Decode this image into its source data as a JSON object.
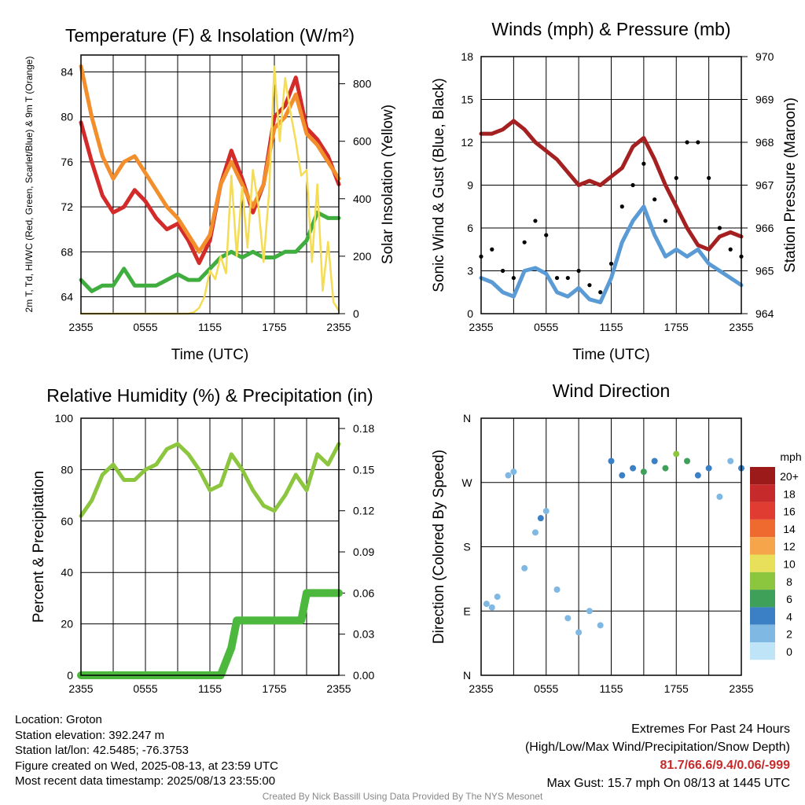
{
  "chart_data": [
    {
      "type": "line",
      "title": "Temperature (F) & Insolation (W/m²)",
      "xlabel": "Time (UTC)",
      "ylabel_left": "2m T, Td, HI/WC (Red, Green, Scarlet/Blue) & 9m T (Orange)",
      "ylabel_right": "Solar Insolation (Yellow)",
      "x_ticks": [
        "2355",
        "0555",
        "1155",
        "1755",
        "2355"
      ],
      "ylim": [
        62.5,
        85.5
      ],
      "yticks": [
        64,
        68,
        72,
        76,
        80,
        84
      ],
      "y2lim": [
        0,
        900
      ],
      "y2ticks": [
        0,
        200,
        400,
        600,
        800
      ],
      "grid": true,
      "series": [
        {
          "color": "#d32a2a",
          "x": [
            0,
            1,
            2,
            3,
            4,
            5,
            6,
            7,
            8,
            9,
            10,
            11,
            12,
            13,
            14,
            15,
            16,
            17,
            18,
            19,
            20,
            21,
            22,
            23,
            24
          ],
          "values": [
            79.5,
            76,
            73,
            71.5,
            72,
            73.5,
            72.5,
            71,
            70,
            70.5,
            69,
            67,
            69,
            74,
            77,
            74.5,
            71.5,
            74,
            80,
            81,
            83.5,
            79,
            78,
            76.5,
            74
          ]
        },
        {
          "color": "#f28e2b",
          "x": [
            0,
            1,
            2,
            3,
            4,
            5,
            6,
            7,
            8,
            9,
            10,
            11,
            12,
            13,
            14,
            15,
            16,
            17,
            18,
            19,
            20,
            21,
            22,
            23,
            24
          ],
          "values": [
            84.5,
            80,
            76.5,
            74.5,
            76,
            76.5,
            75,
            73.5,
            72,
            71,
            69.5,
            68,
            69.5,
            74,
            76,
            74,
            72,
            74,
            79,
            80,
            82,
            78.5,
            77.5,
            76,
            74.5
          ]
        },
        {
          "color": "#3fae3f",
          "x": [
            0,
            1,
            2,
            3,
            4,
            5,
            6,
            7,
            8,
            9,
            10,
            11,
            12,
            13,
            14,
            15,
            16,
            17,
            18,
            19,
            20,
            21,
            22,
            23,
            24
          ],
          "values": [
            65.5,
            64.5,
            65,
            65,
            66.5,
            65,
            65,
            65,
            65.5,
            66,
            65.5,
            65.5,
            66.5,
            67.5,
            68,
            67.5,
            68,
            67.5,
            67.5,
            68,
            68,
            69,
            71.5,
            71,
            71
          ]
        },
        {
          "color": "#f5dc55",
          "axis": "right",
          "x": [
            0,
            2,
            4,
            6,
            8,
            10,
            10.5,
            11,
            11.5,
            12,
            12.5,
            13,
            13.5,
            14,
            14.5,
            15,
            15.5,
            16,
            16.5,
            17,
            17.5,
            18,
            18.5,
            19,
            19.5,
            20,
            20.5,
            21,
            21.5,
            22,
            22.5,
            23,
            23.5,
            24
          ],
          "values": [
            0,
            0,
            0,
            0,
            0,
            0,
            5,
            20,
            60,
            150,
            120,
            200,
            140,
            480,
            200,
            440,
            230,
            500,
            380,
            180,
            420,
            860,
            600,
            820,
            700,
            600,
            480,
            500,
            180,
            450,
            80,
            250,
            40,
            10
          ]
        }
      ]
    },
    {
      "type": "line",
      "title": "Winds (mph) & Pressure (mb)",
      "xlabel": "Time (UTC)",
      "ylabel_left": "Sonic Wind & Gust (Blue, Black)",
      "ylabel_right": "Station Pressure (Maroon)",
      "x_ticks": [
        "2355",
        "0555",
        "1155",
        "1755",
        "2355"
      ],
      "ylim": [
        0,
        18
      ],
      "yticks": [
        0,
        3,
        6,
        9,
        12,
        15,
        18
      ],
      "y2lim": [
        964,
        970
      ],
      "y2ticks": [
        964,
        965,
        966,
        967,
        968,
        969,
        970
      ],
      "grid": true,
      "series": [
        {
          "color": "#5a9bd5",
          "x": [
            0,
            1,
            2,
            3,
            4,
            5,
            6,
            7,
            8,
            9,
            10,
            11,
            12,
            13,
            14,
            15,
            16,
            17,
            18,
            19,
            20,
            21,
            22,
            23,
            24
          ],
          "values": [
            2.5,
            2.2,
            1.5,
            1.2,
            3.0,
            3.2,
            2.8,
            1.5,
            1.2,
            1.8,
            1.0,
            0.8,
            2.5,
            5.0,
            6.5,
            7.5,
            5.5,
            4.0,
            4.5,
            4.0,
            4.5,
            3.5,
            3.0,
            2.5,
            2.0
          ]
        },
        {
          "color": "#000000",
          "style": "dots",
          "x": [
            0,
            1,
            2,
            3,
            4,
            5,
            6,
            7,
            8,
            9,
            10,
            11,
            12,
            13,
            14,
            15,
            16,
            17,
            18,
            19,
            20,
            21,
            22,
            23,
            24
          ],
          "values": [
            4.0,
            4.5,
            3.0,
            2.5,
            5.0,
            6.5,
            5.5,
            2.5,
            2.5,
            3.0,
            2.0,
            1.5,
            3.5,
            7.5,
            9.0,
            10.5,
            8.0,
            6.5,
            9.5,
            12.0,
            12.0,
            9.5,
            6.0,
            4.5,
            4.0
          ]
        },
        {
          "color": "#a52020",
          "axis": "right",
          "x": [
            0,
            1,
            2,
            3,
            4,
            5,
            6,
            7,
            8,
            9,
            10,
            11,
            12,
            13,
            14,
            15,
            16,
            17,
            18,
            19,
            20,
            21,
            22,
            23,
            24
          ],
          "values": [
            968.2,
            968.2,
            968.3,
            968.5,
            968.3,
            968.0,
            967.8,
            967.6,
            967.3,
            967.0,
            967.1,
            967.0,
            967.2,
            967.4,
            967.9,
            968.1,
            967.6,
            967.0,
            966.5,
            966.0,
            965.6,
            965.5,
            965.8,
            965.9,
            965.8
          ]
        }
      ]
    },
    {
      "type": "line",
      "title": "Relative Humidity (%) & Precipitation (in)",
      "ylabel_left": "Percent & Precipitation",
      "x_ticks": [
        "2355",
        "0555",
        "1155",
        "1755",
        "2355"
      ],
      "ylim": [
        0,
        100
      ],
      "yticks": [
        0,
        20,
        40,
        60,
        80,
        100
      ],
      "y2lim": [
        0,
        0.1875
      ],
      "y2ticks": [
        "0.00",
        "0.03",
        "0.06",
        "0.09",
        "0.12",
        "0.15",
        "0.18"
      ],
      "grid": true,
      "series": [
        {
          "color": "#8cc63f",
          "x": [
            0,
            1,
            2,
            3,
            4,
            5,
            6,
            7,
            8,
            9,
            10,
            11,
            12,
            13,
            14,
            15,
            16,
            17,
            18,
            19,
            20,
            21,
            22,
            23,
            24
          ],
          "values": [
            62,
            68,
            78,
            82,
            76,
            76,
            80,
            82,
            88,
            90,
            86,
            80,
            72,
            74,
            86,
            80,
            72,
            66,
            64,
            70,
            78,
            72,
            86,
            82,
            90
          ]
        },
        {
          "color": "#4cb83e",
          "axis": "right",
          "x": [
            0,
            3,
            6,
            9,
            13,
            14,
            14.5,
            15,
            20.5,
            21,
            24
          ],
          "values": [
            0,
            0,
            0,
            0,
            0,
            0.02,
            0.04,
            0.04,
            0.04,
            0.06,
            0.06
          ]
        }
      ]
    },
    {
      "type": "scatter",
      "title": "Wind Direction",
      "ylabel_left": "Direction (Colored By Speed)",
      "x_ticks": [
        "2355",
        "0555",
        "1155",
        "1755",
        "2355"
      ],
      "yticks": [
        "N",
        "E",
        "S",
        "W",
        "N"
      ],
      "legend": {
        "title": "mph",
        "labels": [
          "20+",
          "18",
          "16",
          "14",
          "12",
          "10",
          "8",
          "6",
          "4",
          "2",
          "0"
        ],
        "colors": [
          "#9c1a1a",
          "#c62a2a",
          "#e03c32",
          "#ee6a2e",
          "#f7a54a",
          "#e8e05a",
          "#8cc63f",
          "#3fa05a",
          "#3b7fc4",
          "#7fb8e3",
          "#bfe3f7"
        ],
        "placement": "right"
      },
      "points": [
        {
          "x": 0.5,
          "dir": 100,
          "speed": 2
        },
        {
          "x": 1,
          "dir": 95,
          "speed": 2
        },
        {
          "x": 1.5,
          "dir": 110,
          "speed": 2
        },
        {
          "x": 2.5,
          "dir": 280,
          "speed": 1
        },
        {
          "x": 3,
          "dir": 285,
          "speed": 1
        },
        {
          "x": 4,
          "dir": 150,
          "speed": 2
        },
        {
          "x": 5,
          "dir": 200,
          "speed": 2
        },
        {
          "x": 5.5,
          "dir": 220,
          "speed": 3
        },
        {
          "x": 6,
          "dir": 230,
          "speed": 2
        },
        {
          "x": 7,
          "dir": 120,
          "speed": 1
        },
        {
          "x": 8,
          "dir": 80,
          "speed": 1
        },
        {
          "x": 9,
          "dir": 60,
          "speed": 2
        },
        {
          "x": 10,
          "dir": 90,
          "speed": 1
        },
        {
          "x": 11,
          "dir": 70,
          "speed": 2
        },
        {
          "x": 12,
          "dir": 300,
          "speed": 3
        },
        {
          "x": 13,
          "dir": 280,
          "speed": 4
        },
        {
          "x": 14,
          "dir": 290,
          "speed": 3
        },
        {
          "x": 15,
          "dir": 285,
          "speed": 5
        },
        {
          "x": 16,
          "dir": 300,
          "speed": 4
        },
        {
          "x": 17,
          "dir": 290,
          "speed": 6
        },
        {
          "x": 18,
          "dir": 310,
          "speed": 7
        },
        {
          "x": 19,
          "dir": 300,
          "speed": 6
        },
        {
          "x": 20,
          "dir": 280,
          "speed": 4
        },
        {
          "x": 21,
          "dir": 290,
          "speed": 3
        },
        {
          "x": 22,
          "dir": 250,
          "speed": 2
        },
        {
          "x": 23,
          "dir": 300,
          "speed": 2
        },
        {
          "x": 24,
          "dir": 290,
          "speed": 3
        }
      ]
    }
  ],
  "info": {
    "location": "Location: Groton",
    "elevation": "Station elevation: 392.247 m",
    "latlon": "Station lat/lon: 42.5485; -76.3753",
    "created": "Figure created on Wed, 2025-08-13, at 23:59 UTC",
    "recent": "Most recent data timestamp: 2025/08/13 23:55:00"
  },
  "extremes": {
    "line1": "Extremes For Past 24 Hours",
    "line2": "(High/Low/Max Wind/Precipitation/Snow Depth)",
    "values": "81.7/66.6/9.4/0.06/-999",
    "gust": "Max Gust: 15.7 mph On 08/13 at 1445 UTC"
  },
  "credit": "Created By Nick Bassill Using Data Provided By The NYS Mesonet"
}
